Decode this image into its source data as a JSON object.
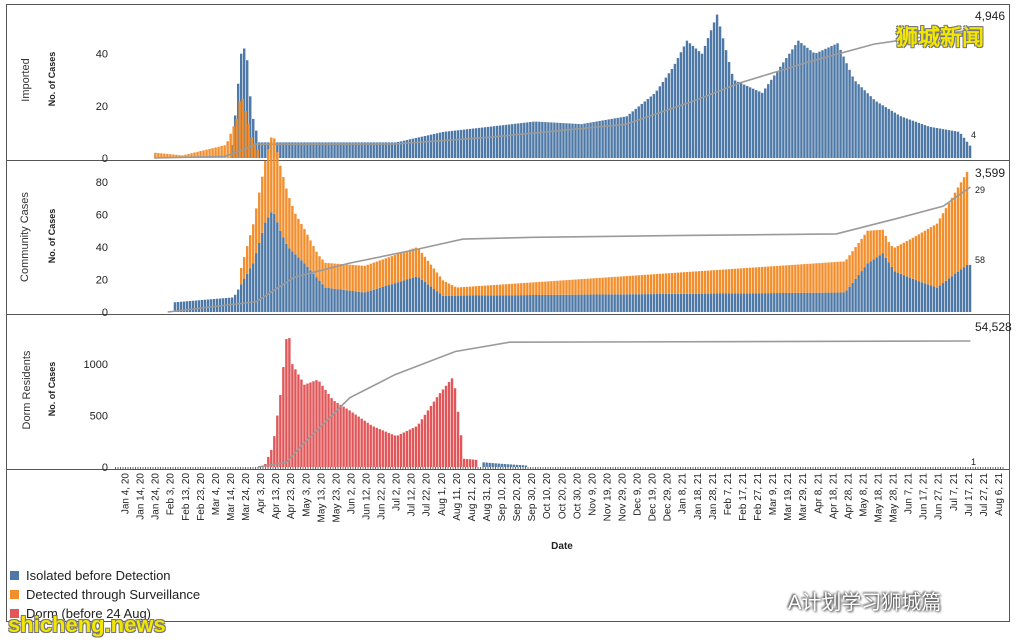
{
  "colors": {
    "isolated": "#4e79a7",
    "surveillance": "#f28e2b",
    "dorm": "#e15759",
    "cumulative": "#9a9a9a"
  },
  "chart_data": [
    {
      "type": "bar",
      "title": "Imported",
      "ylabel": "No. of Cases",
      "ylim": [
        0,
        56
      ],
      "yticks": [
        0,
        20,
        40
      ],
      "cumulative_label": "4,946",
      "last_label": "4",
      "series": [
        {
          "name": "Isolated before Detection",
          "points": [
            [
              "2020-03-14",
              5
            ],
            [
              "2020-03-17",
              22
            ],
            [
              "2020-03-19",
              35
            ],
            [
              "2020-03-21",
              45
            ],
            [
              "2020-03-22",
              42
            ],
            [
              "2020-03-23",
              47
            ],
            [
              "2020-03-25",
              28
            ],
            [
              "2020-03-28",
              15
            ],
            [
              "2020-04-01",
              6
            ],
            [
              "2020-07-01",
              6
            ],
            [
              "2020-08-01",
              10
            ],
            [
              "2020-09-01",
              12
            ],
            [
              "2020-10-01",
              14
            ],
            [
              "2020-11-01",
              13
            ],
            [
              "2020-12-01",
              16
            ],
            [
              "2020-12-20",
              25
            ],
            [
              "2021-01-01",
              35
            ],
            [
              "2021-01-10",
              45
            ],
            [
              "2021-01-20",
              40
            ],
            [
              "2021-01-30",
              55
            ],
            [
              "2021-02-10",
              30
            ],
            [
              "2021-03-01",
              25
            ],
            [
              "2021-03-25",
              45
            ],
            [
              "2021-04-05",
              40
            ],
            [
              "2021-04-20",
              44
            ],
            [
              "2021-05-01",
              30
            ],
            [
              "2021-05-15",
              22
            ],
            [
              "2021-06-01",
              16
            ],
            [
              "2021-06-20",
              12
            ],
            [
              "2021-07-10",
              10
            ],
            [
              "2021-07-18",
              4
            ]
          ]
        },
        {
          "name": "Detected through Surveillance",
          "points": [
            [
              "2020-01-23",
              2
            ],
            [
              "2020-02-10",
              1
            ],
            [
              "2020-03-10",
              5
            ],
            [
              "2020-03-17",
              15
            ],
            [
              "2020-03-20",
              25
            ],
            [
              "2020-03-23",
              18
            ],
            [
              "2020-03-27",
              8
            ],
            [
              "2020-04-01",
              2
            ]
          ]
        }
      ],
      "cumulative": [
        [
          "2020-01-23",
          0
        ],
        [
          "2020-03-10",
          60
        ],
        [
          "2020-03-31",
          530
        ],
        [
          "2020-07-01",
          540
        ],
        [
          "2020-09-01",
          800
        ],
        [
          "2020-12-01",
          1300
        ],
        [
          "2021-01-15",
          2200
        ],
        [
          "2021-02-15",
          2900
        ],
        [
          "2021-04-01",
          3700
        ],
        [
          "2021-05-15",
          4400
        ],
        [
          "2021-07-18",
          4946
        ]
      ]
    },
    {
      "type": "bar",
      "title": "Community Cases",
      "ylabel": "No. of Cases",
      "ylim": [
        0,
        88
      ],
      "yticks": [
        0,
        20,
        40,
        60,
        80
      ],
      "cumulative_label": "3,599",
      "last_labels": [
        "29",
        "58"
      ],
      "series": [
        {
          "name": "Isolated before Detection",
          "points": [
            [
              "2020-02-05",
              6
            ],
            [
              "2020-03-15",
              9
            ],
            [
              "2020-03-28",
              30
            ],
            [
              "2020-04-05",
              55
            ],
            [
              "2020-04-10",
              63
            ],
            [
              "2020-04-15",
              50
            ],
            [
              "2020-04-20",
              40
            ],
            [
              "2020-05-01",
              30
            ],
            [
              "2020-05-15",
              15
            ],
            [
              "2020-06-10",
              12
            ],
            [
              "2020-07-15",
              22
            ],
            [
              "2020-08-01",
              10
            ],
            [
              "2021-04-25",
              12
            ],
            [
              "2021-05-10",
              30
            ],
            [
              "2021-05-20",
              36
            ],
            [
              "2021-05-28",
              25
            ],
            [
              "2021-06-10",
              20
            ],
            [
              "2021-06-25",
              15
            ],
            [
              "2021-07-15",
              29
            ],
            [
              "2021-07-18",
              29
            ]
          ]
        },
        {
          "name": "Detected through Surveillance",
          "points": [
            [
              "2020-03-20",
              10
            ],
            [
              "2020-04-05",
              38
            ],
            [
              "2020-04-10",
              48
            ],
            [
              "2020-04-15",
              40
            ],
            [
              "2020-04-25",
              25
            ],
            [
              "2020-05-10",
              15
            ],
            [
              "2020-07-15",
              18
            ],
            [
              "2020-08-10",
              5
            ],
            [
              "2021-05-10",
              20
            ],
            [
              "2021-05-25",
              12
            ],
            [
              "2021-07-16",
              58
            ]
          ]
        }
      ],
      "cumulative": [
        [
          "2020-02-01",
          0
        ],
        [
          "2020-03-31",
          300
        ],
        [
          "2020-04-25",
          1000
        ],
        [
          "2020-05-31",
          1400
        ],
        [
          "2020-07-15",
          1800
        ],
        [
          "2020-08-15",
          2100
        ],
        [
          "2020-10-01",
          2150
        ],
        [
          "2021-01-01",
          2200
        ],
        [
          "2021-04-20",
          2250
        ],
        [
          "2021-05-31",
          2700
        ],
        [
          "2021-06-30",
          3050
        ],
        [
          "2021-07-18",
          3599
        ]
      ]
    },
    {
      "type": "bar",
      "title": "Dorm Residents",
      "ylabel": "No. of Cases",
      "ylim": [
        0,
        1400
      ],
      "yticks": [
        0,
        500,
        1000
      ],
      "cumulative_label": "54,528",
      "last_label": "1",
      "series": [
        {
          "name": "Dorm (before 24 Aug)",
          "points": [
            [
              "2020-04-05",
              30
            ],
            [
              "2020-04-10",
              200
            ],
            [
              "2020-04-15",
              700
            ],
            [
              "2020-04-20",
              1380
            ],
            [
              "2020-04-23",
              1000
            ],
            [
              "2020-05-01",
              800
            ],
            [
              "2020-05-10",
              850
            ],
            [
              "2020-05-20",
              650
            ],
            [
              "2020-05-31",
              550
            ],
            [
              "2020-06-15",
              400
            ],
            [
              "2020-07-01",
              300
            ],
            [
              "2020-07-15",
              400
            ],
            [
              "2020-07-29",
              700
            ],
            [
              "2020-08-08",
              880
            ],
            [
              "2020-08-15",
              80
            ],
            [
              "2020-08-23",
              70
            ]
          ]
        },
        {
          "name": "Isolated before Detection",
          "points": [
            [
              "2020-08-28",
              45
            ],
            [
              "2020-09-10",
              30
            ],
            [
              "2020-09-25",
              15
            ]
          ]
        }
      ],
      "cumulative": [
        [
          "2020-04-01",
          0
        ],
        [
          "2020-04-20",
          2000
        ],
        [
          "2020-05-01",
          10000
        ],
        [
          "2020-06-01",
          30000
        ],
        [
          "2020-07-01",
          40000
        ],
        [
          "2020-08-10",
          50000
        ],
        [
          "2020-09-15",
          54000
        ],
        [
          "2021-07-18",
          54528
        ]
      ]
    }
  ],
  "x_axis": {
    "label": "Date",
    "start": "2019-12-28",
    "end": "2021-08-10",
    "ticks": [
      "Jan 4, 20",
      "Jan 14, 20",
      "Jan 24, 20",
      "Feb 3, 20",
      "Feb 13, 20",
      "Feb 23, 20",
      "Mar 4, 20",
      "Mar 14, 20",
      "Mar 24, 20",
      "Apr 3, 20",
      "Apr 13, 20",
      "Apr 23, 20",
      "May 3, 20",
      "May 13, 20",
      "May 23, 20",
      "Jun 2, 20",
      "Jun 12, 20",
      "Jun 22, 20",
      "Jul 2, 20",
      "Jul 12, 20",
      "Jul 22, 20",
      "Aug 1, 20",
      "Aug 11, 20",
      "Aug 21, 20",
      "Aug 31, 20",
      "Sep 10, 20",
      "Sep 20, 20",
      "Sep 30, 20",
      "Oct 10, 20",
      "Oct 20, 20",
      "Oct 30, 20",
      "Nov 9, 20",
      "Nov 19, 20",
      "Nov 29, 20",
      "Dec 9, 20",
      "Dec 19, 20",
      "Dec 29, 20",
      "Jan 8, 21",
      "Jan 18, 21",
      "Jan 28, 21",
      "Feb 7, 21",
      "Feb 17, 21",
      "Feb 27, 21",
      "Mar 9, 21",
      "Mar 19, 21",
      "Mar 29, 21",
      "Apr 8, 21",
      "Apr 18, 21",
      "Apr 28, 21",
      "May 8, 21",
      "May 18, 21",
      "May 28, 21",
      "Jun 7, 21",
      "Jun 17, 21",
      "Jun 27, 21",
      "Jul 7, 21",
      "Jul 17, 21",
      "Jul 27, 21",
      "Aug 6, 21"
    ]
  },
  "legend": [
    {
      "label": "Isolated before Detection",
      "color": "#4e79a7"
    },
    {
      "label": "Detected through Surveillance",
      "color": "#f28e2b"
    },
    {
      "label": "Dorm (before 24 Aug)",
      "color": "#e15759"
    }
  ],
  "watermarks": {
    "top": "狮城新闻",
    "bottom": "shicheng.news",
    "wechat": "A计划学习狮城篇"
  }
}
